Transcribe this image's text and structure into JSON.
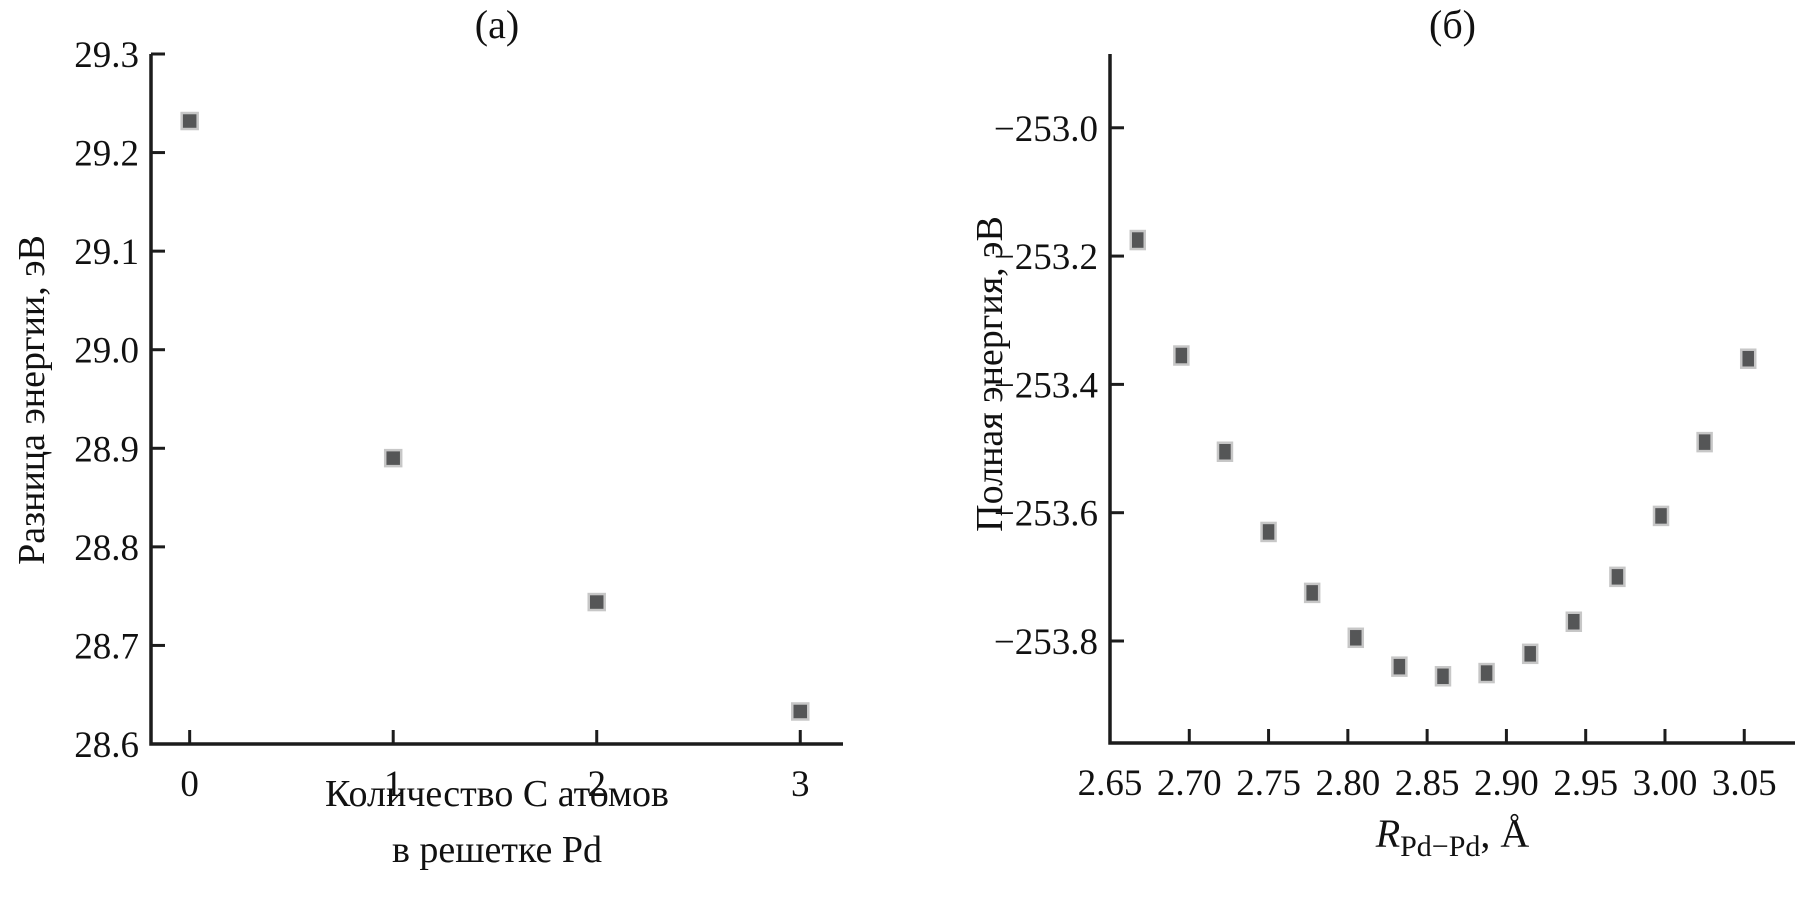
{
  "figure": {
    "background": "#ffffff",
    "axis_color": "#1c1c1c",
    "text_color": "#111111",
    "marker_fill": "#555657",
    "marker_edge": "#c7c7c7"
  },
  "chart_data": [
    {
      "type": "scatter",
      "panel": "a",
      "title": "(а)",
      "ylabel": "Разница энергии, эВ",
      "xlabel_line1": "Количество C атомов",
      "xlabel_line2": "в решетке Pd",
      "x": [
        0,
        1,
        2,
        3
      ],
      "y": [
        29.232,
        28.89,
        28.744,
        28.633
      ],
      "xlim": [
        -0.19,
        3.21
      ],
      "ylim": [
        28.6,
        29.3
      ],
      "xticks": [
        0,
        1,
        2,
        3
      ],
      "xtick_labels": [
        "0",
        "1",
        "2",
        "3"
      ],
      "yticks": [
        28.6,
        28.7,
        28.8,
        28.9,
        29.0,
        29.1,
        29.2,
        29.3
      ],
      "ytick_labels": [
        "28.6",
        "28.7",
        "28.8",
        "28.9",
        "29.0",
        "29.1",
        "29.2",
        "29.3"
      ],
      "grid": false,
      "legend": "none"
    },
    {
      "type": "scatter",
      "panel": "б",
      "title": "(б)",
      "ylabel": "Полная энергия, эВ",
      "xlabel_r": "R",
      "xlabel_sub": "Pd−Pd",
      "xlabel_suffix": ", Å",
      "x": [
        2.6675,
        2.695,
        2.7225,
        2.75,
        2.7775,
        2.805,
        2.8325,
        2.86,
        2.8875,
        2.915,
        2.9425,
        2.97,
        2.9975,
        3.025,
        3.0525
      ],
      "y": [
        -253.175,
        -253.355,
        -253.505,
        -253.63,
        -253.725,
        -253.795,
        -253.84,
        -253.855,
        -253.85,
        -253.82,
        -253.77,
        -253.7,
        -253.605,
        -253.49,
        -253.36
      ],
      "xlim": [
        2.65,
        3.082
      ],
      "ylim": [
        -253.959,
        -252.885
      ],
      "xticks": [
        2.7,
        2.75,
        2.8,
        2.85,
        2.9,
        2.95,
        3.0,
        3.05
      ],
      "xtick_labels": [
        "2.70",
        "2.75",
        "2.80",
        "2.85",
        "2.90",
        "2.95",
        "3.00",
        "3.05"
      ],
      "extra_xtick_label": {
        "value": 2.65,
        "label": "2.65"
      },
      "yticks": [
        -253.0,
        -253.2,
        -253.4,
        -253.6,
        -253.8
      ],
      "ytick_labels": [
        "−253.0",
        "−253.2",
        "−253.4",
        "−253.6",
        "−253.8"
      ],
      "grid": false,
      "legend": "none"
    }
  ]
}
